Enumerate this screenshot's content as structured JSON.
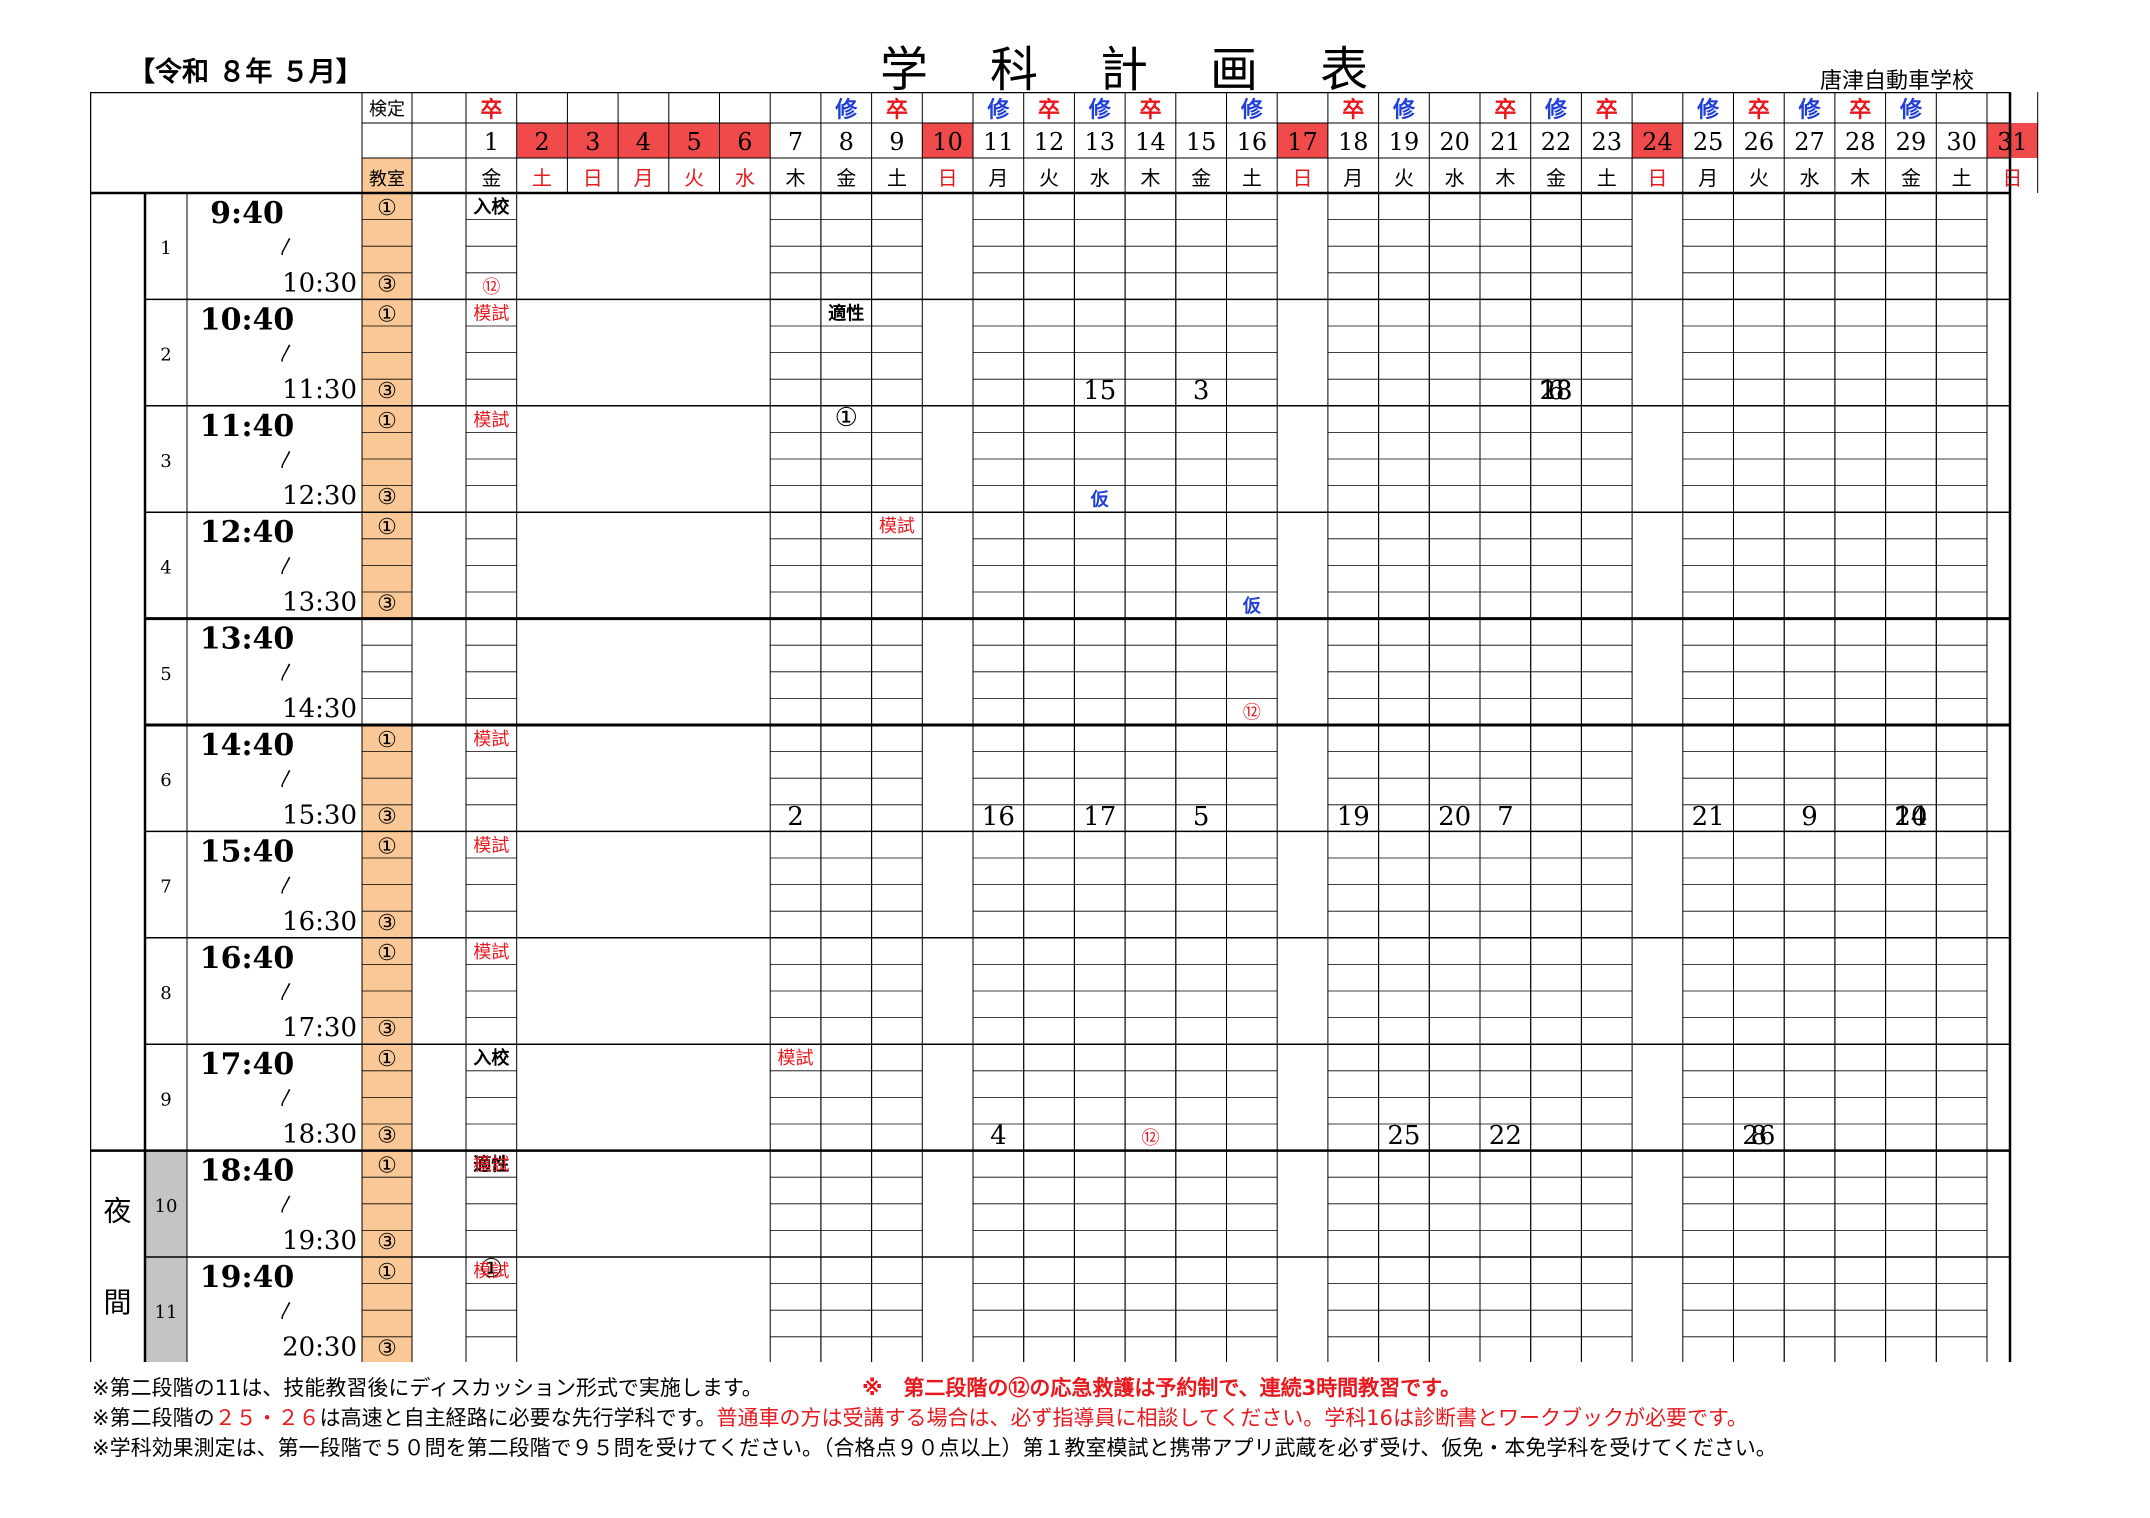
{
  "header": {
    "era": "【令和 ８年 ５月】",
    "title_chars": [
      "学",
      "科",
      "計",
      "画",
      "表"
    ],
    "school": "唐津自動車学校"
  },
  "labels": {
    "kentei": "検定",
    "kyoushitsu": "教室",
    "night": [
      "夜",
      "間"
    ],
    "wave": "〳",
    "room_a": "①",
    "room_b": "③"
  },
  "colors": {
    "red_cell": "#f04a4a",
    "red_text": "#e8191e",
    "blue_text": "#1f3fd8",
    "orange_room": "#f9c896",
    "gray_period": "#c4c4c4",
    "pink_cell": "#e5b6b6"
  },
  "days": [
    {
      "d": "1",
      "w": "金",
      "k": "卒",
      "red": false
    },
    {
      "d": "2",
      "w": "土",
      "k": "",
      "red": true
    },
    {
      "d": "3",
      "w": "日",
      "k": "",
      "red": true
    },
    {
      "d": "4",
      "w": "月",
      "k": "",
      "red": true
    },
    {
      "d": "5",
      "w": "火",
      "k": "",
      "red": true
    },
    {
      "d": "6",
      "w": "水",
      "k": "",
      "red": true
    },
    {
      "d": "7",
      "w": "木",
      "k": "",
      "red": false
    },
    {
      "d": "8",
      "w": "金",
      "k": "修",
      "red": false
    },
    {
      "d": "9",
      "w": "土",
      "k": "卒",
      "red": false
    },
    {
      "d": "10",
      "w": "日",
      "k": "",
      "red": true
    },
    {
      "d": "11",
      "w": "月",
      "k": "修",
      "red": false
    },
    {
      "d": "12",
      "w": "火",
      "k": "卒",
      "red": false
    },
    {
      "d": "13",
      "w": "水",
      "k": "修",
      "red": false
    },
    {
      "d": "14",
      "w": "木",
      "k": "卒",
      "red": false
    },
    {
      "d": "15",
      "w": "金",
      "k": "",
      "red": false
    },
    {
      "d": "16",
      "w": "土",
      "k": "修",
      "red": false
    },
    {
      "d": "17",
      "w": "日",
      "k": "",
      "red": true
    },
    {
      "d": "18",
      "w": "月",
      "k": "卒",
      "red": false
    },
    {
      "d": "19",
      "w": "火",
      "k": "修",
      "red": false
    },
    {
      "d": "20",
      "w": "水",
      "k": "",
      "red": false
    },
    {
      "d": "21",
      "w": "木",
      "k": "卒",
      "red": false
    },
    {
      "d": "22",
      "w": "金",
      "k": "修",
      "red": false
    },
    {
      "d": "23",
      "w": "土",
      "k": "卒",
      "red": false
    },
    {
      "d": "24",
      "w": "日",
      "k": "",
      "red": true
    },
    {
      "d": "25",
      "w": "月",
      "k": "修",
      "red": false
    },
    {
      "d": "26",
      "w": "火",
      "k": "卒",
      "red": false
    },
    {
      "d": "27",
      "w": "水",
      "k": "修",
      "red": false
    },
    {
      "d": "28",
      "w": "木",
      "k": "卒",
      "red": false
    },
    {
      "d": "29",
      "w": "金",
      "k": "修",
      "red": false
    },
    {
      "d": "30",
      "w": "土",
      "k": "",
      "red": false
    },
    {
      "d": "31",
      "w": "日",
      "k": "",
      "red": true
    }
  ],
  "periods": [
    {
      "n": "1",
      "start": "9:40",
      "end": "10:30"
    },
    {
      "n": "2",
      "start": "10:40",
      "end": "11:30"
    },
    {
      "n": "3",
      "start": "11:40",
      "end": "12:30"
    },
    {
      "n": "4",
      "start": "12:40",
      "end": "13:30"
    },
    {
      "n": "5",
      "start": "13:40",
      "end": "14:30"
    },
    {
      "n": "6",
      "start": "14:40",
      "end": "15:30"
    },
    {
      "n": "7",
      "start": "15:40",
      "end": "16:30"
    },
    {
      "n": "8",
      "start": "16:40",
      "end": "17:30"
    },
    {
      "n": "9",
      "start": "17:40",
      "end": "18:30"
    },
    {
      "n": "10",
      "start": "18:40",
      "end": "19:30"
    },
    {
      "n": "11",
      "start": "19:40",
      "end": "20:30"
    }
  ],
  "cells": [
    [
      "1",
      "0",
      "0",
      "入校",
      "k"
    ],
    [
      "1",
      "2",
      "0",
      "⑫",
      "r"
    ],
    [
      "2",
      "0",
      "0",
      "模試",
      "r"
    ],
    [
      "2",
      "0",
      "0",
      "適性",
      "k"
    ],
    [
      "2",
      "2",
      "0",
      "15",
      "n"
    ],
    [
      "2",
      "2",
      "0",
      "3",
      "n"
    ],
    [
      "2",
      "2",
      "0",
      "18",
      "n"
    ],
    [
      "2",
      "2",
      "0",
      "6",
      "n"
    ],
    [
      "2",
      "2",
      "0",
      "23",
      "n"
    ],
    [
      "3",
      "0",
      "0",
      "模試",
      "r"
    ],
    [
      "3",
      "0",
      "0",
      "①",
      "c"
    ],
    [
      "3",
      "2",
      "0",
      "仮",
      "b"
    ],
    [
      "4",
      "0",
      "0",
      "模試",
      "r"
    ],
    [
      "4",
      "2",
      "0",
      "仮",
      "b"
    ],
    [
      "5",
      "2",
      "0",
      "⑫",
      "r"
    ],
    [
      "6",
      "0",
      "0",
      "模試",
      "r"
    ],
    [
      "6",
      "2",
      "0",
      "2",
      "n"
    ],
    [
      "6",
      "2",
      "0",
      "16",
      "n"
    ],
    [
      "6",
      "2",
      "0",
      "17",
      "n"
    ],
    [
      "6",
      "2",
      "0",
      "5",
      "n"
    ],
    [
      "6",
      "2",
      "0",
      "19",
      "n"
    ],
    [
      "6",
      "2",
      "0",
      "20",
      "n"
    ],
    [
      "6",
      "2",
      "0",
      "7",
      "n"
    ],
    [
      "6",
      "2",
      "0",
      "21",
      "n"
    ],
    [
      "6",
      "2",
      "0",
      "9",
      "n"
    ],
    [
      "6",
      "2",
      "0",
      "10",
      "n"
    ],
    [
      "6",
      "2",
      "0",
      "24",
      "n"
    ],
    [
      "7",
      "0",
      "0",
      "模試",
      "r"
    ],
    [
      "8",
      "0",
      "0",
      "模試",
      "r"
    ],
    [
      "9",
      "0",
      "0",
      "入校",
      "k"
    ],
    [
      "9",
      "0",
      "0",
      "模試",
      "r"
    ],
    [
      "9",
      "2",
      "0",
      "4",
      "n"
    ],
    [
      "9",
      "2",
      "0",
      "⑫",
      "r"
    ],
    [
      "9",
      "2",
      "0",
      "25",
      "n"
    ],
    [
      "9",
      "2",
      "0",
      "22",
      "n"
    ],
    [
      "9",
      "2",
      "0",
      "8",
      "n"
    ],
    [
      "9",
      "2",
      "0",
      "26",
      "n"
    ],
    [
      "10",
      "0",
      "0",
      "適性",
      "k"
    ],
    [
      "10",
      "0",
      "0",
      "模試",
      "r"
    ],
    [
      "11",
      "0",
      "0",
      "①",
      "c"
    ],
    [
      "11",
      "0",
      "0",
      "模試",
      "r"
    ]
  ],
  "notes": {
    "n1": "※第二段階の11は、技能教習後にディスカッション形式で実施します。",
    "n1r": "※　第二段階の⑫の応急救護は予約制で、連続3時間教習です。",
    "n2a": "※第二段階の",
    "n2b": "２５・２６",
    "n2c": "は高速と自主経路に必要な先行学科です。",
    "n2d": "普通車の方は受講する場合は、必ず指導員に相談してください。学科16は診断書とワークブックが必要です。",
    "n3": "※学科効果測定は、第一段階で５０問を第二段階で９５問を受けてください。（合格点９０点以上）第１教室模試と携帯アプリ武蔵を必ず受け、仮免・本免学科を受けてください。"
  }
}
